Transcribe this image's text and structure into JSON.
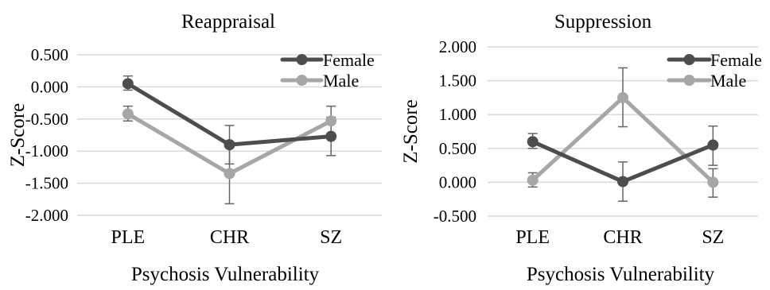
{
  "colors": {
    "female": "#4d4d4d",
    "male": "#a6a6a6",
    "error_bar": "#666666",
    "grid": "#d9d9d9"
  },
  "chart_data": [
    {
      "type": "line",
      "title": "Reappraisal",
      "xlabel": "Psychosis Vulnerability",
      "ylabel": "Z-Score",
      "categories": [
        "PLE",
        "CHR",
        "SZ"
      ],
      "y_ticks": [
        "0.500",
        "0.000",
        "-0.500",
        "-1.000",
        "-1.500",
        "-2.000"
      ],
      "ylim": [
        -2.0,
        0.5
      ],
      "grid": true,
      "legend_position": "top-right",
      "series": [
        {
          "name": "Female",
          "values": [
            0.05,
            -0.9,
            -0.77
          ],
          "error_low": [
            -0.05,
            -1.2,
            -1.07
          ],
          "error_high": [
            0.17,
            -0.6,
            -0.47
          ]
        },
        {
          "name": "Male",
          "values": [
            -0.42,
            -1.35,
            -0.53
          ],
          "error_low": [
            -0.53,
            -1.82,
            -0.75
          ],
          "error_high": [
            -0.3,
            -0.9,
            -0.3
          ]
        }
      ]
    },
    {
      "type": "line",
      "title": "Suppression",
      "xlabel": "Psychosis Vulnerability",
      "ylabel": "Z-Score",
      "categories": [
        "PLE",
        "CHR",
        "SZ"
      ],
      "y_ticks": [
        "2.000",
        "1.500",
        "1.000",
        "0.500",
        "0.000",
        "-0.500"
      ],
      "ylim": [
        -0.5,
        2.0
      ],
      "grid": true,
      "legend_position": "top-right",
      "series": [
        {
          "name": "Female",
          "values": [
            0.6,
            0.01,
            0.55
          ],
          "error_low": [
            0.5,
            -0.28,
            0.25
          ],
          "error_high": [
            0.72,
            0.3,
            0.83
          ]
        },
        {
          "name": "Male",
          "values": [
            0.03,
            1.25,
            0.0
          ],
          "error_low": [
            -0.07,
            0.82,
            -0.22
          ],
          "error_high": [
            0.14,
            1.69,
            0.2
          ]
        }
      ]
    }
  ]
}
